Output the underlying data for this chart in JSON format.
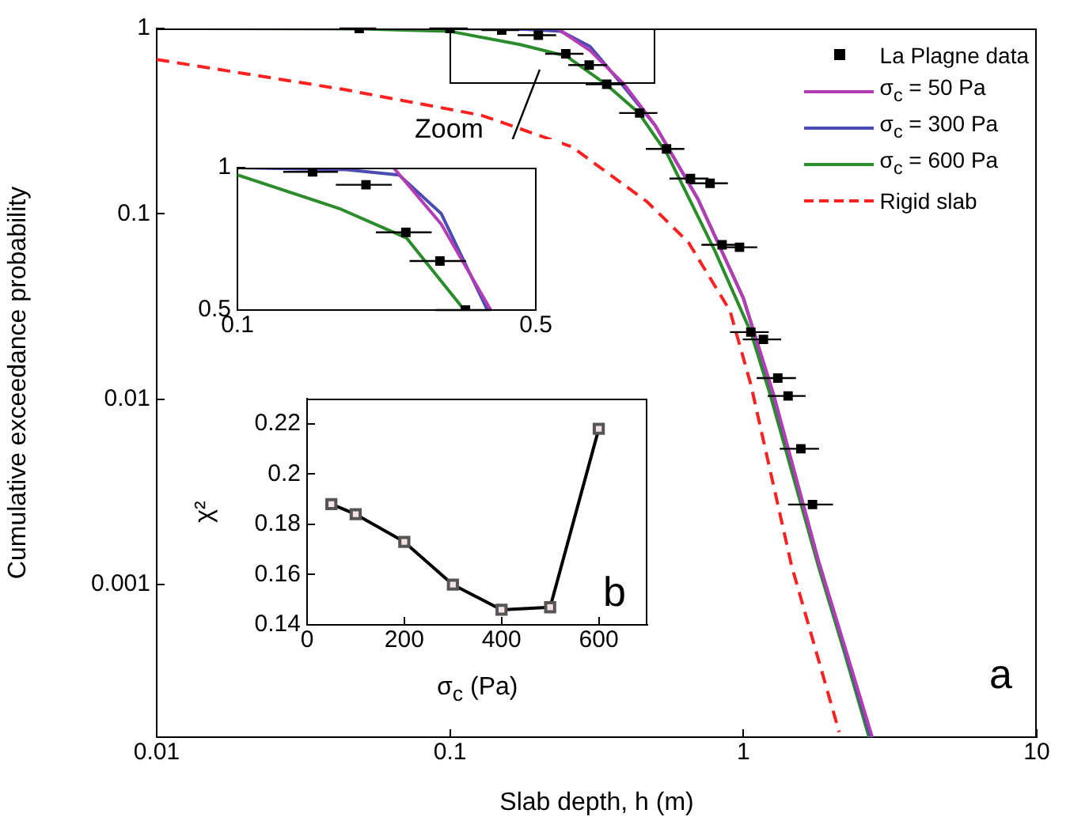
{
  "chart_data": [
    {
      "type": "line",
      "xlabel": "Slab depth, h (m)",
      "ylabel": "Cumulative exceedance probability",
      "log": "xy",
      "xlim": [
        0.01,
        10
      ],
      "ylim": [
        0.00015,
        1
      ],
      "xticks": [
        0.01,
        0.1,
        1,
        10
      ],
      "yticks": [
        0.001,
        0.01,
        0.1,
        1
      ],
      "grid": false,
      "legend": "top right",
      "annotations": [
        "Zoom",
        "a"
      ],
      "series": [
        {
          "name": "La Plagne data",
          "type": "scatter",
          "marker": "square",
          "color": "#000000",
          "x": [
            0.049,
            0.1,
            0.15,
            0.2,
            0.248,
            0.298,
            0.342,
            0.443,
            0.547,
            0.66,
            0.77,
            0.846,
            0.97,
            1.06,
            1.17,
            1.31,
            1.42,
            1.57,
            1.72
          ],
          "values": [
            1,
            1,
            0.98,
            0.92,
            0.73,
            0.635,
            0.5,
            0.35,
            0.224,
            0.155,
            0.146,
            0.068,
            0.066,
            0.023,
            0.021,
            0.013,
            0.0104,
            0.0054,
            0.0027
          ],
          "xerrors": [
            0.007,
            0.015,
            0.022,
            0.03,
            0.037,
            0.045,
            0.052,
            0.066,
            0.082,
            0.1,
            0.115,
            0.127,
            0.145,
            0.16,
            0.175,
            0.2,
            0.21,
            0.24,
            0.3
          ]
        },
        {
          "name": "σ$_{c}$ = 50 Pa",
          "color": "#b43cb4",
          "x": [
            0.01,
            0.1,
            0.232,
            0.3,
            0.392,
            0.5,
            0.7,
            1.0,
            1.27,
            1.8,
            2.2,
            2.75
          ],
          "values": [
            1,
            1,
            1,
            0.76,
            0.5,
            0.3,
            0.12,
            0.035,
            0.0105,
            0.00135,
            0.00048,
            0.00015
          ]
        },
        {
          "name": "σ$_{c}$ = 300 Pa",
          "color": "#4b4bb4",
          "x": [
            0.01,
            0.1,
            0.18,
            0.239,
            0.3,
            0.385,
            0.5,
            0.7,
            1.0,
            1.27,
            1.8,
            2.2,
            2.72
          ],
          "values": [
            1,
            1,
            0.99,
            0.965,
            0.8,
            0.5,
            0.3,
            0.12,
            0.035,
            0.0103,
            0.00135,
            0.00047,
            0.00015
          ]
        },
        {
          "name": "σ$_{c}$ = 600 Pa",
          "color": "#2a8c2a",
          "x": [
            0.01,
            0.05,
            0.1,
            0.173,
            0.249,
            0.34,
            0.44,
            0.55,
            0.8,
            1.06,
            1.24,
            1.8,
            2.2,
            2.68
          ],
          "values": [
            1,
            0.995,
            0.965,
            0.82,
            0.71,
            0.5,
            0.35,
            0.21,
            0.063,
            0.023,
            0.0103,
            0.00126,
            0.00044,
            0.00015
          ]
        },
        {
          "name": "Rigid slab",
          "line_style": "dashed",
          "color": "#ff2020",
          "x": [
            0.01,
            0.043,
            0.128,
            0.26,
            0.47,
            0.65,
            0.9,
            1.06,
            1.46,
            2.12
          ],
          "values": [
            0.68,
            0.47,
            0.34,
            0.23,
            0.116,
            0.07,
            0.03,
            0.012,
            0.00126,
            0.00016
          ]
        }
      ]
    },
    {
      "type": "line",
      "log": "xy",
      "xlim": [
        0.1,
        0.5
      ],
      "ylim": [
        0.5,
        1
      ],
      "xticks": [
        0.1,
        0.5
      ],
      "yticks": [
        0.5,
        1
      ],
      "grid": false,
      "series": [
        {
          "type": "scatter",
          "marker": "square",
          "color": "#000000",
          "x": [
            0.15,
            0.2,
            0.248,
            0.298,
            0.342
          ],
          "values": [
            0.98,
            0.92,
            0.73,
            0.635,
            0.5
          ],
          "xerrors": [
            0.022,
            0.03,
            0.037,
            0.045,
            0.052
          ]
        },
        {
          "color": "#b43cb4",
          "x": [
            0.1,
            0.232,
            0.3,
            0.392
          ],
          "values": [
            1,
            1,
            0.76,
            0.5
          ]
        },
        {
          "color": "#4b4bb4",
          "x": [
            0.1,
            0.18,
            0.239,
            0.3,
            0.385
          ],
          "values": [
            1,
            0.99,
            0.965,
            0.8,
            0.5
          ]
        },
        {
          "color": "#2a8c2a",
          "x": [
            0.1,
            0.173,
            0.249,
            0.34
          ],
          "values": [
            0.965,
            0.82,
            0.71,
            0.5
          ]
        }
      ]
    },
    {
      "type": "line",
      "xlabel": "σ$_{c}$ (Pa)",
      "ylabel": "χ²",
      "xlim": [
        0,
        700
      ],
      "ylim": [
        0.14,
        0.23
      ],
      "xticks": [
        0,
        200,
        400,
        600
      ],
      "yticks": [
        0.14,
        0.16,
        0.18,
        0.2,
        0.22
      ],
      "grid": false,
      "marker": "square",
      "annotations": [
        "b"
      ],
      "series": [
        {
          "color": "#000000",
          "x": [
            50,
            100,
            200,
            300,
            400,
            500,
            600
          ],
          "values": [
            0.188,
            0.184,
            0.173,
            0.156,
            0.146,
            0.147,
            0.218
          ]
        }
      ]
    }
  ]
}
